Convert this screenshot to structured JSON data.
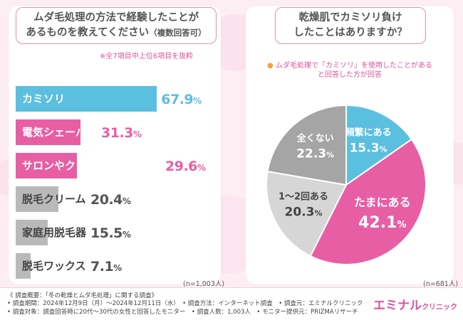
{
  "colors": {
    "pink": "#e85ea5",
    "blue": "#5bbfe0",
    "gray": "#a5a5a5",
    "light_gray": "#d6d6d6",
    "accent": "#e0529a",
    "bar_top": "#5bbfe0",
    "bar_mid": "#e85ea5",
    "bar_low": "#b9b9b9"
  },
  "left_panel": {
    "title_line1": "ムダ毛処理の方法で経験したことが",
    "title_line2": "あるものを教えてください",
    "title_paren": "（複数回答可）",
    "note": "※全7項目中上位6項目を抜粋",
    "n_label": "(n=1,003人)"
  },
  "right_panel": {
    "title_line1": "乾燥肌でカミソリ負け",
    "title_line2": "したことはありますか？",
    "note_line1": "ムダ毛処理で「カミソリ」を使用したことがある",
    "note_line2": "と回答した方が回答",
    "n_label": "(n=681人)"
  },
  "chart_data": [
    {
      "type": "bar",
      "orientation": "horizontal",
      "title": "ムダ毛処理の方法で経験したことがあるものを教えてください（複数回答可）",
      "unit": "%",
      "xlim": [
        0,
        100
      ],
      "categories": [
        "カミソリ",
        "電気シェーバー",
        "サロンやクリニックでの脱毛",
        "脱毛クリーム",
        "家庭用脱毛器",
        "脱毛ワックス"
      ],
      "values": [
        67.9,
        31.3,
        29.6,
        20.4,
        15.5,
        7.1
      ],
      "value_labels": [
        "67.9",
        "31.3",
        "29.6",
        "20.4",
        "15.5",
        "7.1"
      ]
    },
    {
      "type": "pie",
      "title": "乾燥肌でカミソリ負けしたことはありますか？",
      "unit": "%",
      "labels": [
        "頻繁にある",
        "たまにある",
        "1～2回ある",
        "全くない"
      ],
      "values": [
        15.3,
        42.1,
        20.3,
        22.3
      ],
      "value_labels": [
        "15.3",
        "42.1",
        "20.3",
        "22.3"
      ],
      "colors": [
        "#5bbfe0",
        "#e85ea5",
        "#d6d6d6",
        "#a5a5a5"
      ]
    }
  ],
  "footer": {
    "line1": "《 調査概要：「冬の乾燥とムダ毛処理」に関する調査》",
    "line2": "• 調査期間：2024年12月9日（月）～2024年12月11日（水）　• 調査方法：インターネット調査　• 調査元：エミナルクリニック",
    "line3": "• 調査対象：調査回答時に20代～30代の女性と回答したモニター　• 調査人数：1,003人　• モニター提供元：PRIZMAリサーチ",
    "brand": "エミナル",
    "brand_sub": "クリニック"
  }
}
